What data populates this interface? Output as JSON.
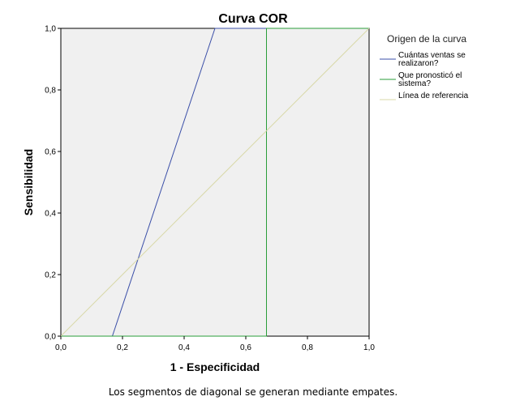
{
  "chart_data": {
    "type": "line",
    "title": "Curva COR",
    "xlabel": "1 - Especificidad",
    "ylabel": "Sensibilidad",
    "xlim": [
      0,
      1
    ],
    "ylim": [
      0,
      1
    ],
    "x_ticks": [
      "0,0",
      "0,2",
      "0,4",
      "0,6",
      "0,8",
      "1,0"
    ],
    "y_ticks": [
      "0,0",
      "0,2",
      "0,4",
      "0,6",
      "0,8",
      "1,0"
    ],
    "grid": false,
    "background": "#f0f0f0",
    "legend_title": "Origen de la curva",
    "legend_position": "right",
    "series": [
      {
        "name": "Cuántas ventas se realizaron?",
        "name_lines": [
          "Cuántas ventas se",
          "realizaron?"
        ],
        "color": "#3b4fa8",
        "points": [
          [
            0,
            0
          ],
          [
            0.167,
            0
          ],
          [
            0.5,
            1
          ],
          [
            1,
            1
          ]
        ]
      },
      {
        "name": "Que pronosticó el sistema?",
        "name_lines": [
          "Que pronosticó el",
          "sistema?"
        ],
        "color": "#2a9e3a",
        "points": [
          [
            0,
            0
          ],
          [
            0.667,
            0
          ],
          [
            0.667,
            1
          ],
          [
            1,
            1
          ]
        ]
      },
      {
        "name": "Línea de referencia",
        "name_lines": [
          "Línea de referencia"
        ],
        "color": "#d8d8a8",
        "points": [
          [
            0,
            0
          ],
          [
            1,
            1
          ]
        ]
      }
    ],
    "footnote": "Los segmentos de diagonal se generan mediante empates."
  }
}
